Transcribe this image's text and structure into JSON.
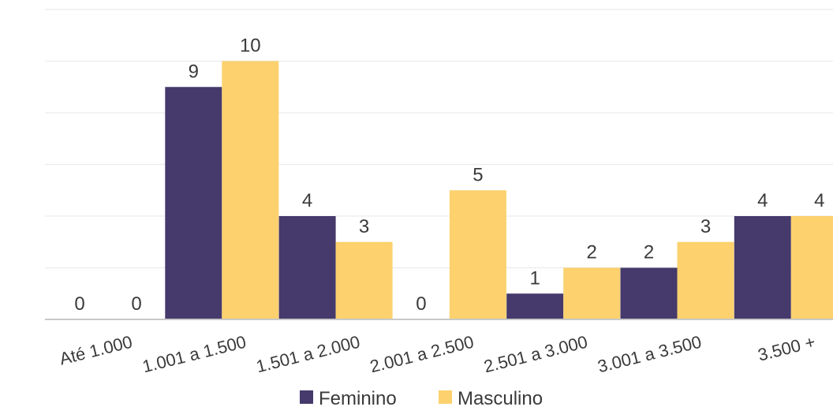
{
  "chart_data": {
    "type": "bar",
    "categories": [
      "Até 1.000",
      "1.001 a 1.500",
      "1.501 a 2.000",
      "2.001 a 2.500",
      "2.501 a 3.000",
      "3.001 a 3.500",
      "3.500 +"
    ],
    "series": [
      {
        "name": "Feminino",
        "values": [
          0,
          9,
          4,
          0,
          1,
          2,
          4
        ],
        "color": "#453a6b"
      },
      {
        "name": "Masculino",
        "values": [
          0,
          10,
          3,
          5,
          2,
          3,
          4
        ],
        "color": "#fcd16e"
      }
    ],
    "ylim": [
      0,
      12
    ],
    "grid": true,
    "legend": "bottom",
    "data_labels": true,
    "xtick_rotation": -14
  }
}
